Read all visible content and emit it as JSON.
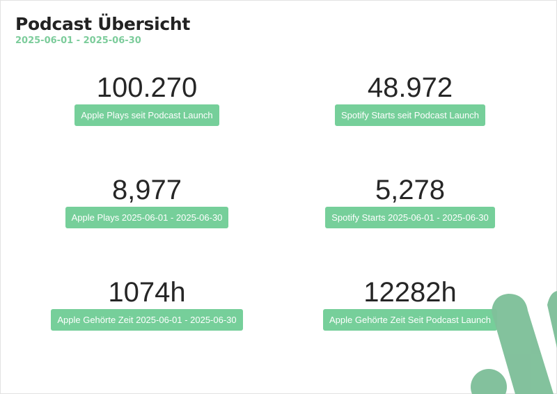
{
  "report": {
    "title": "Podcast Übersicht",
    "date_range": "2025-06-01 - 2025-06-30"
  },
  "metrics": [
    {
      "value": "100.270",
      "label": "Apple Plays seit Podcast Launch"
    },
    {
      "value": "48.972",
      "label": "Spotify Starts seit Podcast Launch"
    },
    {
      "value": "8,977",
      "label": "Apple Plays 2025-06-01 - 2025-06-30"
    },
    {
      "value": "5,278",
      "label": "Spotify Starts 2025-06-01 - 2025-06-30"
    },
    {
      "value": "1074h",
      "label": "Apple Gehörte Zeit 2025-06-01 - 2025-06-30"
    },
    {
      "value": "12282h",
      "label": "Apple Gehörte Zeit Seit Podcast Launch"
    }
  ],
  "colors": {
    "accent": "#76cf9a",
    "decoration": "#7fc09a",
    "text": "#262626"
  }
}
